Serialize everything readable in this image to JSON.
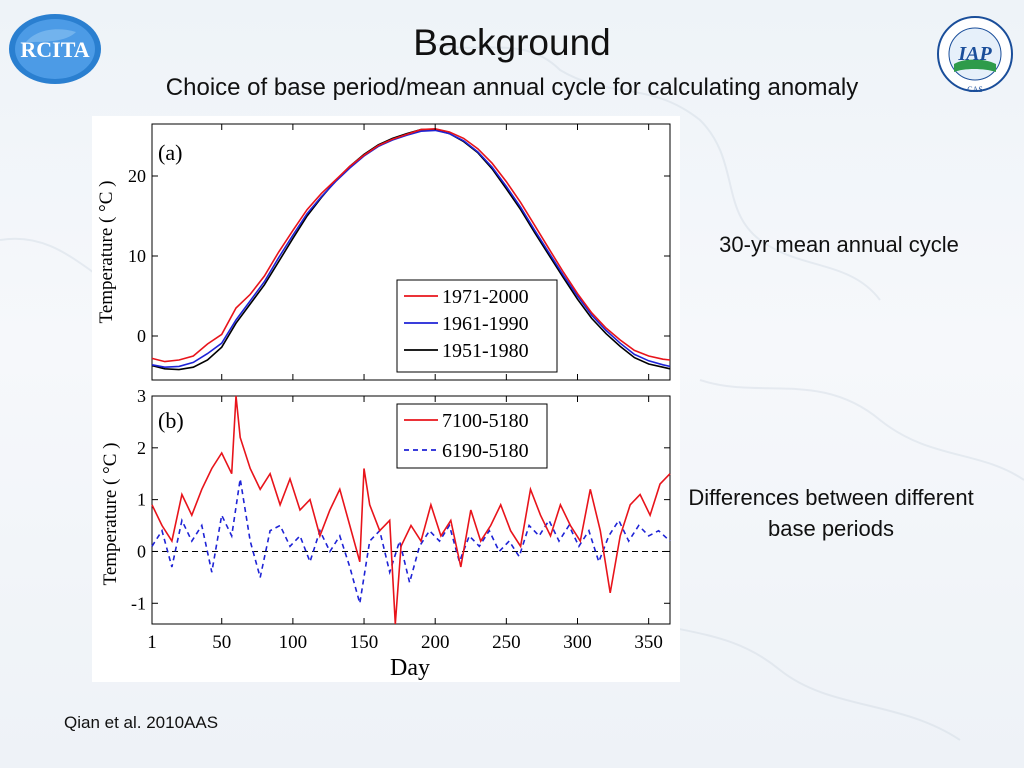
{
  "slide": {
    "title": "Background",
    "subtitle": "Choice of base period/mean annual cycle for calculating anomaly",
    "note_a": "30-yr mean annual cycle",
    "note_b": "Differences between different base periods",
    "citation": "Qian et al. 2010AAS",
    "logo_left_text": "RCITA",
    "logo_right_text": "IAP",
    "logo_right_ring": "CAS"
  },
  "chart_data": [
    {
      "type": "line",
      "panel_label": "(a)",
      "xlabel": "",
      "ylabel": "Temperature ( °C )",
      "xlim": [
        1,
        365
      ],
      "ylim": [
        -5.5,
        26.5
      ],
      "yticks": [
        0,
        10,
        20
      ],
      "xticks": [
        1,
        50,
        100,
        150,
        200,
        250,
        300,
        350
      ],
      "legend_position": "bottom-right",
      "series": [
        {
          "name": "1971-2000",
          "color": "#e8141b",
          "dash": "",
          "x": [
            1,
            10,
            20,
            30,
            40,
            50,
            60,
            70,
            80,
            90,
            100,
            110,
            120,
            130,
            140,
            150,
            160,
            170,
            180,
            190,
            200,
            210,
            220,
            230,
            240,
            250,
            260,
            270,
            280,
            290,
            300,
            310,
            320,
            330,
            340,
            350,
            360,
            365
          ],
          "y": [
            -2.8,
            -3.2,
            -3.0,
            -2.5,
            -1.0,
            0.2,
            3.5,
            5.2,
            7.5,
            10.5,
            13.2,
            15.8,
            17.8,
            19.5,
            21.2,
            22.6,
            23.8,
            24.6,
            25.2,
            25.8,
            25.9,
            25.5,
            24.7,
            23.4,
            21.6,
            19.3,
            16.7,
            13.8,
            10.9,
            8.0,
            5.3,
            2.9,
            1.0,
            -0.5,
            -1.8,
            -2.5,
            -2.9,
            -3.0
          ]
        },
        {
          "name": "1961-1990",
          "color": "#1e23d6",
          "dash": "",
          "x": [
            1,
            10,
            20,
            30,
            40,
            50,
            60,
            70,
            80,
            90,
            100,
            110,
            120,
            130,
            140,
            150,
            160,
            170,
            180,
            190,
            200,
            210,
            220,
            230,
            240,
            250,
            260,
            270,
            280,
            290,
            300,
            310,
            320,
            330,
            340,
            350,
            360,
            365
          ],
          "y": [
            -3.6,
            -3.9,
            -3.8,
            -3.3,
            -2.2,
            -0.9,
            2.0,
            4.4,
            6.8,
            9.8,
            12.6,
            15.3,
            17.4,
            19.3,
            21.0,
            22.5,
            23.7,
            24.5,
            25.1,
            25.6,
            25.7,
            25.3,
            24.4,
            23.0,
            21.1,
            18.7,
            16.1,
            13.2,
            10.4,
            7.6,
            5.0,
            2.6,
            0.7,
            -0.9,
            -2.3,
            -3.1,
            -3.6,
            -3.8
          ]
        },
        {
          "name": "1951-1980",
          "color": "#000000",
          "dash": "",
          "x": [
            1,
            10,
            20,
            30,
            40,
            50,
            60,
            70,
            80,
            90,
            100,
            110,
            120,
            130,
            140,
            150,
            160,
            170,
            180,
            190,
            200,
            210,
            220,
            230,
            240,
            250,
            260,
            270,
            280,
            290,
            300,
            310,
            320,
            330,
            340,
            350,
            360,
            365
          ],
          "y": [
            -3.7,
            -4.1,
            -4.2,
            -3.9,
            -3.0,
            -1.4,
            1.6,
            4.0,
            6.4,
            9.3,
            12.2,
            15.0,
            17.3,
            19.4,
            21.2,
            22.7,
            23.9,
            24.7,
            25.3,
            25.8,
            25.8,
            25.3,
            24.3,
            22.9,
            20.9,
            18.4,
            15.8,
            12.9,
            10.1,
            7.3,
            4.6,
            2.2,
            0.3,
            -1.3,
            -2.7,
            -3.5,
            -3.9,
            -4.1
          ]
        }
      ]
    },
    {
      "type": "line",
      "panel_label": "(b)",
      "xlabel": "Day",
      "ylabel": "Temperature ( °C )",
      "xlim": [
        1,
        365
      ],
      "ylim": [
        -1.4,
        3.0
      ],
      "yticks": [
        -1,
        0,
        1,
        2,
        3
      ],
      "xticks": [
        1,
        50,
        100,
        150,
        200,
        250,
        300,
        350
      ],
      "legend_position": "top-right",
      "zero_line": true,
      "series": [
        {
          "name": "7100-5180",
          "color": "#e8141b",
          "dash": "",
          "x": [
            1,
            8,
            15,
            22,
            29,
            36,
            43,
            50,
            57,
            60,
            63,
            70,
            77,
            84,
            91,
            98,
            105,
            112,
            119,
            126,
            133,
            140,
            147,
            150,
            154,
            161,
            168,
            172,
            176,
            183,
            190,
            197,
            204,
            211,
            218,
            225,
            232,
            239,
            246,
            253,
            260,
            267,
            274,
            281,
            288,
            295,
            302,
            309,
            316,
            323,
            330,
            337,
            344,
            351,
            358,
            365
          ],
          "y": [
            0.9,
            0.5,
            0.2,
            1.1,
            0.7,
            1.2,
            1.6,
            1.9,
            1.5,
            3.0,
            2.2,
            1.6,
            1.2,
            1.5,
            0.9,
            1.4,
            0.8,
            1.0,
            0.3,
            0.8,
            1.2,
            0.5,
            -0.2,
            1.6,
            0.9,
            0.4,
            0.6,
            -1.4,
            0.1,
            0.5,
            0.2,
            0.9,
            0.3,
            0.6,
            -0.3,
            0.8,
            0.2,
            0.5,
            0.9,
            0.4,
            0.1,
            1.2,
            0.7,
            0.3,
            0.9,
            0.5,
            0.2,
            1.2,
            0.4,
            -0.8,
            0.3,
            0.9,
            1.1,
            0.7,
            1.3,
            1.5
          ]
        },
        {
          "name": "6190-5180",
          "color": "#1e23d6",
          "dash": "5,4",
          "x": [
            1,
            8,
            15,
            22,
            29,
            36,
            43,
            50,
            57,
            63,
            70,
            77,
            84,
            91,
            98,
            105,
            112,
            119,
            126,
            133,
            140,
            147,
            154,
            161,
            168,
            175,
            182,
            189,
            196,
            203,
            210,
            217,
            224,
            231,
            238,
            245,
            252,
            259,
            266,
            273,
            280,
            287,
            294,
            301,
            308,
            315,
            322,
            329,
            336,
            343,
            350,
            357,
            365
          ],
          "y": [
            0.1,
            0.4,
            -0.3,
            0.6,
            0.2,
            0.5,
            -0.4,
            0.7,
            0.3,
            1.4,
            0.2,
            -0.5,
            0.4,
            0.5,
            0.1,
            0.3,
            -0.2,
            0.4,
            0.0,
            0.3,
            -0.3,
            -1.0,
            0.2,
            0.4,
            -0.4,
            0.2,
            -0.6,
            0.1,
            0.4,
            0.2,
            0.5,
            -0.2,
            0.3,
            0.1,
            0.4,
            0.0,
            0.2,
            -0.1,
            0.5,
            0.3,
            0.6,
            0.2,
            0.5,
            0.1,
            0.4,
            -0.2,
            0.3,
            0.6,
            0.2,
            0.5,
            0.3,
            0.4,
            0.2
          ]
        }
      ]
    }
  ]
}
